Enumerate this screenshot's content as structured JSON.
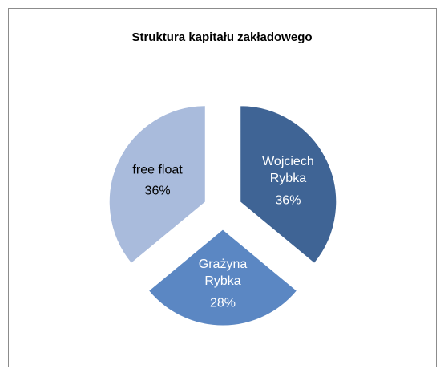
{
  "chart_data": {
    "type": "pie",
    "title": "Struktura kapitału zakładowego",
    "categories": [
      "Wojciech Rybka",
      "Grażyna Rybka",
      "free float"
    ],
    "values": [
      36,
      28,
      36
    ],
    "value_labels": [
      "36%",
      "28%",
      "36%"
    ],
    "colors": [
      "#3f6495",
      "#5b87c3",
      "#a9bbdc"
    ],
    "exploded": true
  }
}
